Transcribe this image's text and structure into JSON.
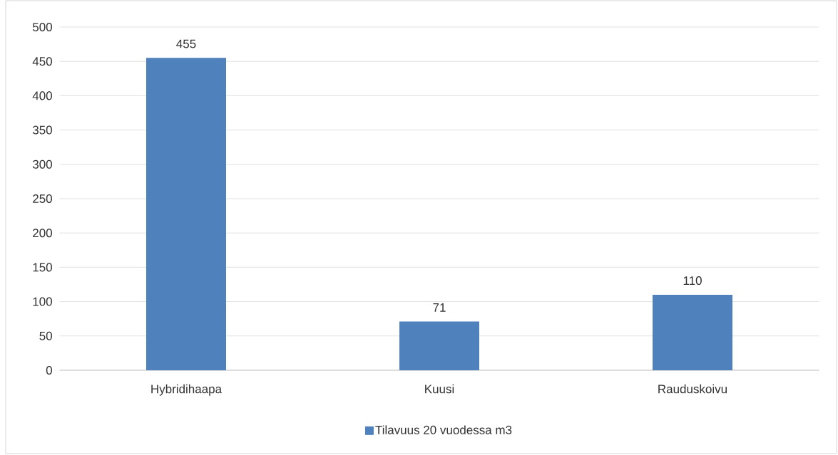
{
  "chart_data": {
    "type": "bar",
    "categories": [
      "Hybridihaapa",
      "Kuusi",
      "Rauduskoivu"
    ],
    "series": [
      {
        "name": "Tilavuus 20 vuodessa m3",
        "color": "#4f81bd",
        "values": [
          455,
          71,
          110
        ]
      }
    ],
    "ylim": [
      0,
      500
    ],
    "yticks": [
      0,
      50,
      100,
      150,
      200,
      250,
      300,
      350,
      400,
      450,
      500
    ],
    "grid": "y",
    "legend": "bottom",
    "data_labels": true
  }
}
